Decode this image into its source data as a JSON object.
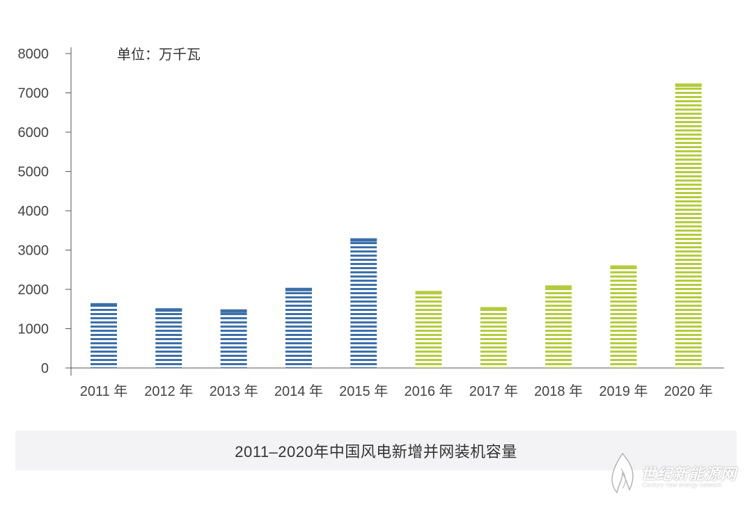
{
  "chart_data": {
    "type": "bar",
    "unit_label": "单位：万千瓦",
    "categories": [
      "2011 年",
      "2012 年",
      "2013 年",
      "2014 年",
      "2015 年",
      "2016 年",
      "2017 年",
      "2018 年",
      "2019 年",
      "2020 年"
    ],
    "values": [
      1650,
      1520,
      1490,
      2040,
      3300,
      1960,
      1550,
      2100,
      2610,
      7240
    ],
    "ylim": [
      0,
      8000
    ],
    "yticks": [
      0,
      1000,
      2000,
      3000,
      4000,
      5000,
      6000,
      7000,
      8000
    ],
    "grid": false,
    "colors": {
      "blue": "#3d6fa8",
      "green": "#b3cc3c"
    },
    "bar_color_keys": [
      "blue",
      "blue",
      "blue",
      "blue",
      "blue",
      "green",
      "green",
      "green",
      "green",
      "green"
    ]
  },
  "caption": "2011–2020年中国风电新增并网装机容量",
  "watermark": {
    "name": "世纪新能源网",
    "sub": "Century new energy network"
  }
}
